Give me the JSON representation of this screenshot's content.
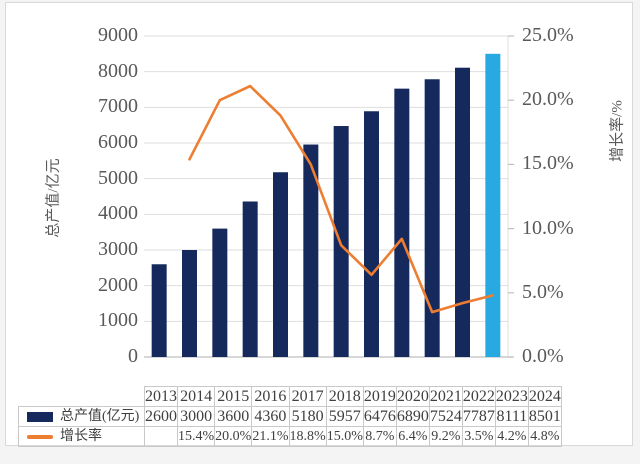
{
  "chart_data": {
    "type": "combo",
    "title": "",
    "categories": [
      "2013",
      "2014",
      "2015",
      "2016",
      "2017",
      "2018",
      "2019",
      "2020",
      "2021",
      "2022",
      "2023",
      "2024"
    ],
    "series": [
      {
        "name": "总产值(亿元)",
        "type": "bar",
        "axis": "left",
        "color": "#16295c",
        "highlight_index": 11,
        "highlight_color": "#29a9e2",
        "values": [
          2600,
          3000,
          3600,
          4360,
          5180,
          5957,
          6476,
          6890,
          7524,
          7787,
          8111,
          8501
        ]
      },
      {
        "name": "增长率",
        "type": "line",
        "axis": "right",
        "color": "#ed7d31",
        "values": [
          null,
          15.4,
          20.0,
          21.1,
          18.8,
          15.0,
          8.7,
          6.4,
          9.2,
          3.5,
          4.2,
          4.8
        ]
      }
    ],
    "left_axis": {
      "title": "总产值/亿元",
      "min": 0,
      "max": 9000,
      "step": 1000,
      "tick_labels": [
        "0",
        "1000",
        "2000",
        "3000",
        "4000",
        "5000",
        "6000",
        "7000",
        "8000",
        "9000"
      ]
    },
    "right_axis": {
      "title": "增长率/%",
      "min": 0,
      "max": 25,
      "step": 5,
      "tick_labels": [
        "0.0%",
        "5.0%",
        "10.0%",
        "15.0%",
        "20.0%",
        "25.0%"
      ]
    },
    "grid": true,
    "legend_position": "table-left"
  },
  "table": {
    "rows": [
      {
        "label": "总产值(亿元)",
        "swatch": "bar",
        "values": [
          "2600",
          "3000",
          "3600",
          "4360",
          "5180",
          "5957",
          "6476",
          "6890",
          "7524",
          "7787",
          "8111",
          "8501"
        ]
      },
      {
        "label": "增长率",
        "swatch": "line",
        "values": [
          "",
          "15.4%",
          "20.0%",
          "21.1%",
          "18.8%",
          "15.0%",
          "8.7%",
          "6.4%",
          "9.2%",
          "3.5%",
          "4.2%",
          "4.8%"
        ]
      }
    ]
  },
  "colors": {
    "gridline": "#dedede",
    "axis_line": "#bfbfbf",
    "table_border": "#c9c9c9",
    "tick_text": "#595959",
    "table_text": "#3f3f3f"
  }
}
